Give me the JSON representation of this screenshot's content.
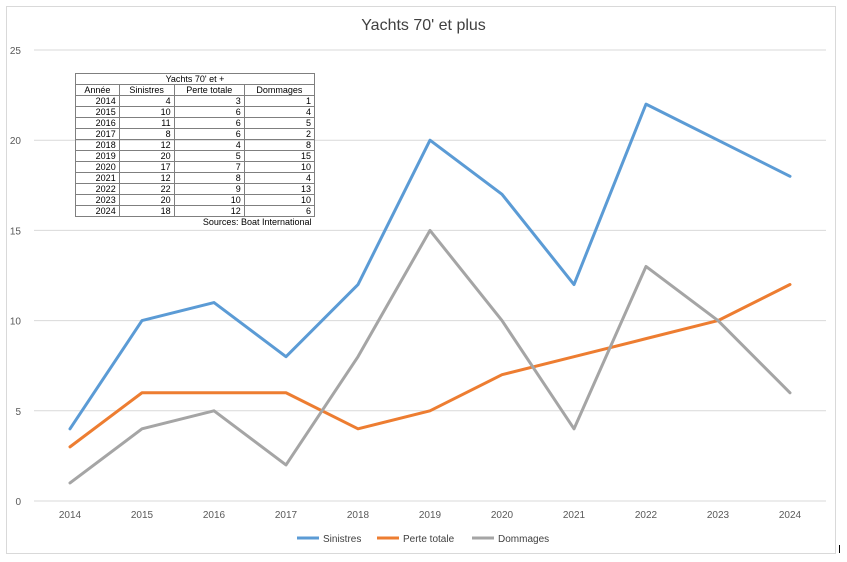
{
  "chart_data": {
    "type": "line",
    "title": "Yachts 70' et plus",
    "xlabel": "",
    "ylabel": "",
    "ylim": [
      0,
      25
    ],
    "yticks": [
      0,
      5,
      10,
      15,
      20,
      25
    ],
    "grid": true,
    "legend_position": "bottom",
    "categories": [
      "2014",
      "2015",
      "2016",
      "2017",
      "2018",
      "2019",
      "2020",
      "2021",
      "2022",
      "2023",
      "2024"
    ],
    "series": [
      {
        "name": "Sinistres",
        "color": "#5b9bd5",
        "values": [
          4,
          10,
          11,
          8,
          12,
          20,
          17,
          12,
          22,
          20,
          18
        ]
      },
      {
        "name": "Perte totale",
        "color": "#ed7d31",
        "values": [
          3,
          6,
          6,
          6,
          4,
          5,
          7,
          8,
          9,
          10,
          12
        ]
      },
      {
        "name": "Dommages",
        "color": "#a5a5a5",
        "values": [
          1,
          4,
          5,
          2,
          8,
          15,
          10,
          4,
          13,
          10,
          6
        ]
      }
    ]
  },
  "table": {
    "title": "Yachts 70' et +",
    "headers": [
      "Année",
      "Sinistres",
      "Perte totale",
      "Dommages"
    ],
    "rows": [
      [
        "2014",
        "4",
        "3",
        "1"
      ],
      [
        "2015",
        "10",
        "6",
        "4"
      ],
      [
        "2016",
        "11",
        "6",
        "5"
      ],
      [
        "2017",
        "8",
        "6",
        "2"
      ],
      [
        "2018",
        "12",
        "4",
        "8"
      ],
      [
        "2019",
        "20",
        "5",
        "15"
      ],
      [
        "2020",
        "17",
        "7",
        "10"
      ],
      [
        "2021",
        "12",
        "8",
        "4"
      ],
      [
        "2022",
        "22",
        "9",
        "13"
      ],
      [
        "2023",
        "20",
        "10",
        "10"
      ],
      [
        "2024",
        "18",
        "12",
        "6"
      ]
    ],
    "source": "Sources: Boat International"
  }
}
